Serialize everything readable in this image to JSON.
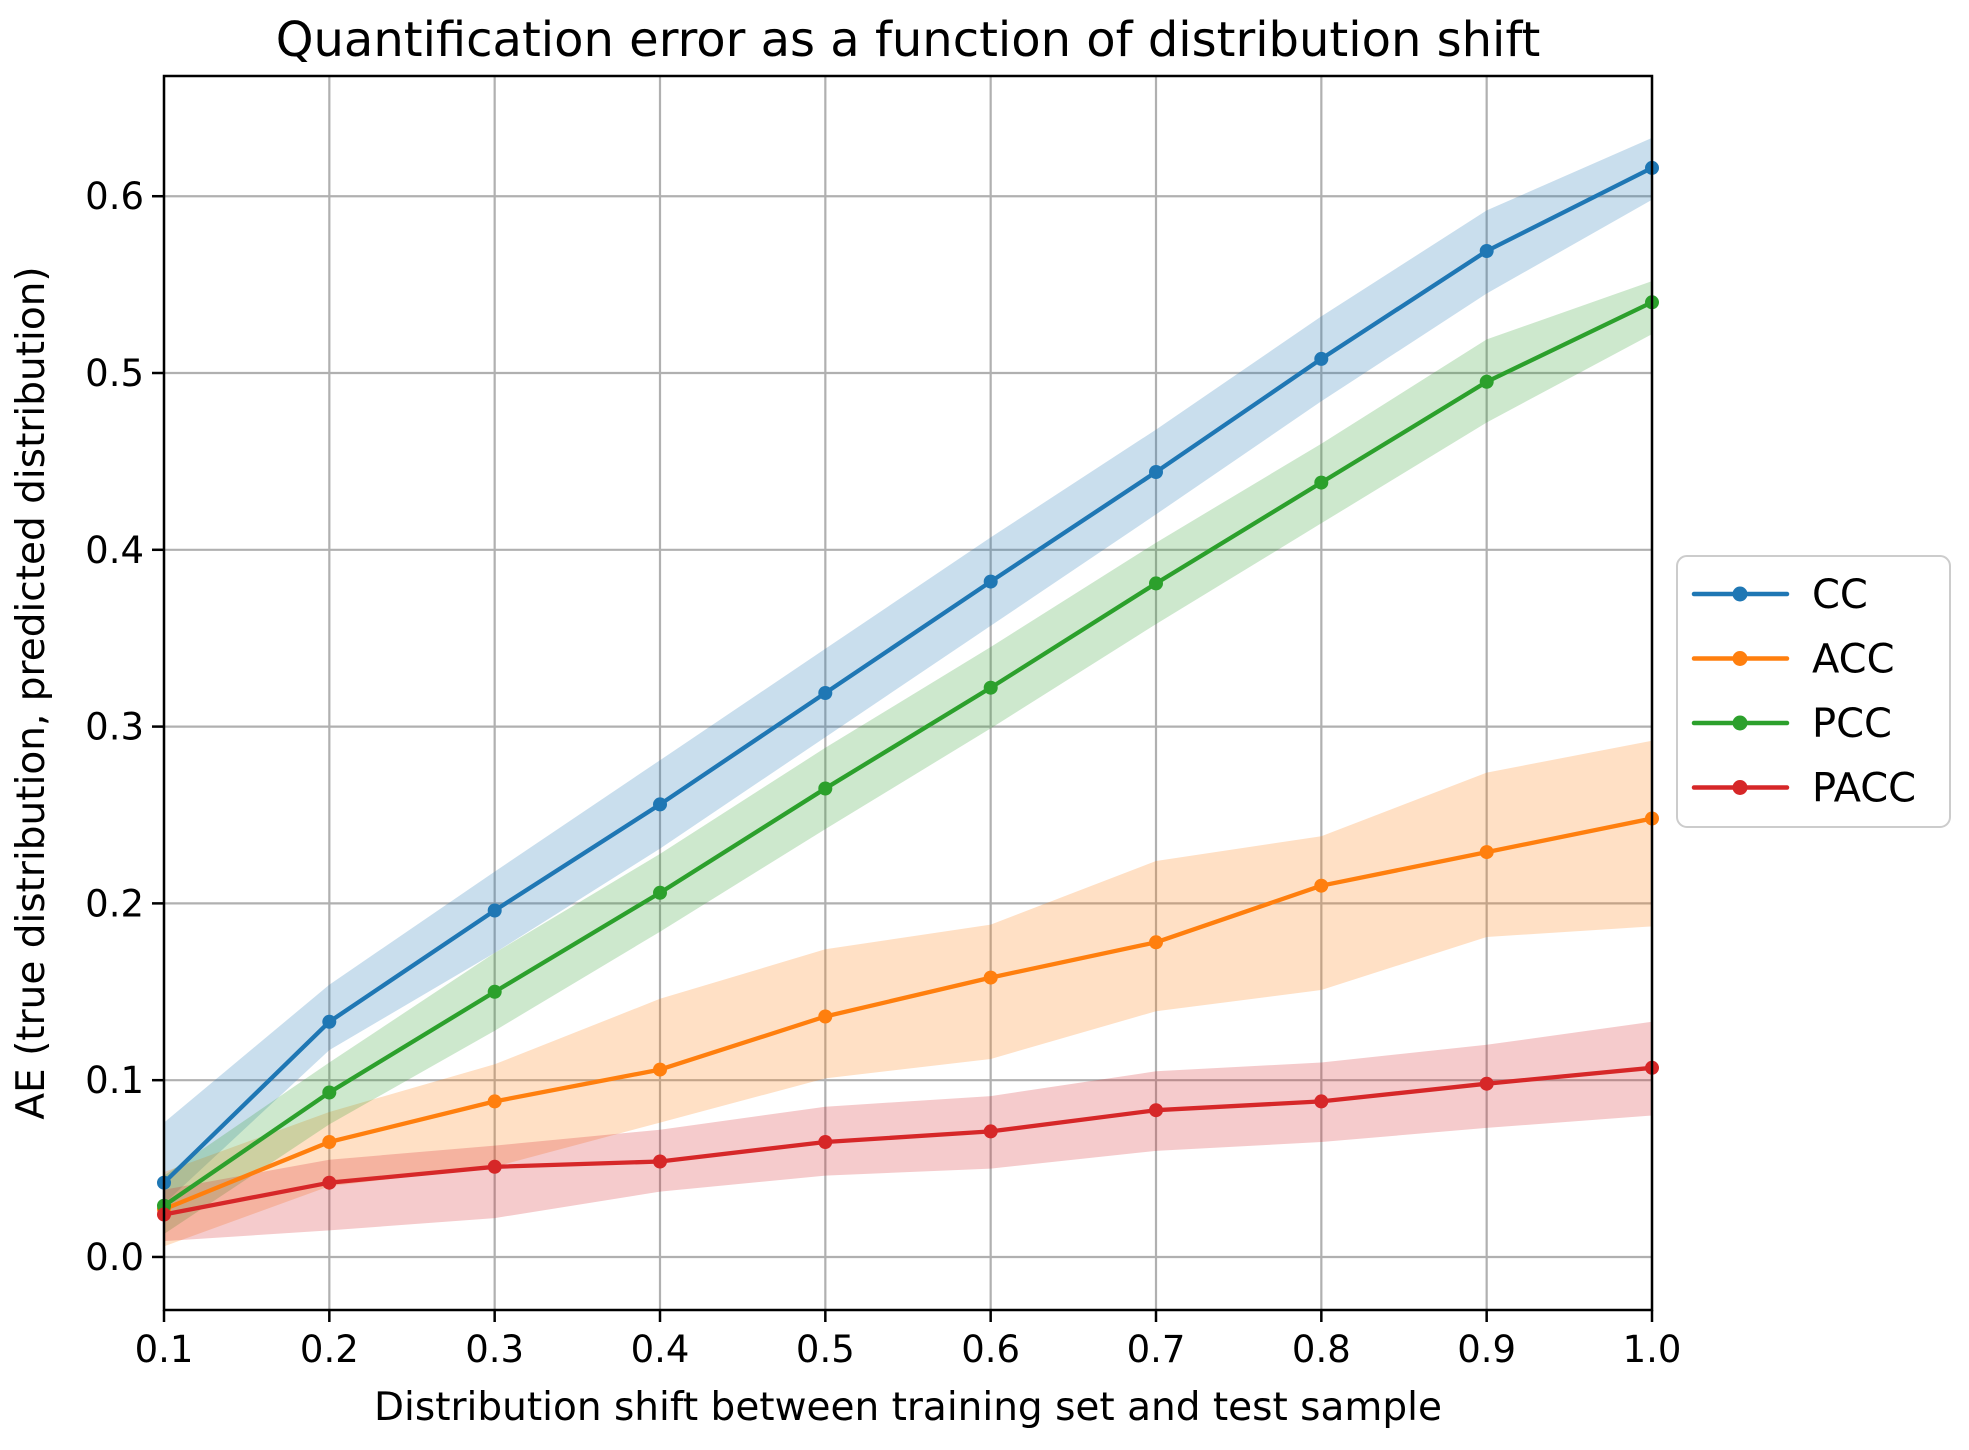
{
  "page": {
    "background": "#ffffff"
  },
  "chart_data": {
    "type": "line",
    "title": "Quantification error as a function of distribution shift",
    "xlabel": "Distribution shift between training set and test sample",
    "ylabel": "AE (true distribution, predicted distribution)",
    "x": [
      0.1,
      0.2,
      0.3,
      0.4,
      0.5,
      0.6,
      0.7,
      0.8,
      0.9,
      1.0
    ],
    "x_tick_labels": [
      "0.1",
      "0.2",
      "0.3",
      "0.4",
      "0.5",
      "0.6",
      "0.7",
      "0.8",
      "0.9",
      "1.0"
    ],
    "y_ticks": [
      0.0,
      0.1,
      0.2,
      0.3,
      0.4,
      0.5,
      0.6
    ],
    "y_tick_labels": [
      "0.0",
      "0.1",
      "0.2",
      "0.3",
      "0.4",
      "0.5",
      "0.6"
    ],
    "xlim": [
      0.1,
      1.0
    ],
    "ylim": [
      -0.03,
      0.668
    ],
    "grid": true,
    "grid_color": "#b0b0b0",
    "band_alpha": 0.24,
    "legend": {
      "position": "right-outside",
      "entries": [
        "CC",
        "ACC",
        "PCC",
        "PACC"
      ]
    },
    "series": [
      {
        "name": "CC",
        "color": "#1f77b4",
        "values": [
          0.042,
          0.133,
          0.196,
          0.256,
          0.319,
          0.382,
          0.444,
          0.508,
          0.569,
          0.616
        ],
        "band_lower": [
          0.03,
          0.117,
          0.172,
          0.231,
          0.294,
          0.357,
          0.42,
          0.484,
          0.545,
          0.598
        ],
        "band_upper": [
          0.076,
          0.154,
          0.218,
          0.281,
          0.344,
          0.407,
          0.468,
          0.532,
          0.592,
          0.633
        ]
      },
      {
        "name": "ACC",
        "color": "#ff7f0e",
        "values": [
          0.027,
          0.065,
          0.088,
          0.106,
          0.136,
          0.158,
          0.178,
          0.21,
          0.229,
          0.248
        ],
        "band_lower": [
          0.006,
          0.04,
          0.051,
          0.076,
          0.101,
          0.112,
          0.139,
          0.151,
          0.181,
          0.187
        ],
        "band_upper": [
          0.048,
          0.082,
          0.109,
          0.146,
          0.174,
          0.188,
          0.224,
          0.238,
          0.274,
          0.292
        ]
      },
      {
        "name": "PCC",
        "color": "#2ca02c",
        "values": [
          0.029,
          0.093,
          0.15,
          0.206,
          0.265,
          0.322,
          0.381,
          0.438,
          0.495,
          0.54
        ],
        "band_lower": [
          0.013,
          0.075,
          0.128,
          0.184,
          0.242,
          0.299,
          0.358,
          0.415,
          0.472,
          0.522
        ],
        "band_upper": [
          0.046,
          0.11,
          0.172,
          0.228,
          0.288,
          0.345,
          0.404,
          0.46,
          0.519,
          0.552
        ]
      },
      {
        "name": "PACC",
        "color": "#d62728",
        "values": [
          0.024,
          0.042,
          0.051,
          0.054,
          0.065,
          0.071,
          0.083,
          0.088,
          0.098,
          0.107
        ],
        "band_lower": [
          0.009,
          0.015,
          0.022,
          0.037,
          0.046,
          0.05,
          0.06,
          0.065,
          0.073,
          0.08
        ],
        "band_upper": [
          0.038,
          0.055,
          0.063,
          0.072,
          0.085,
          0.091,
          0.105,
          0.11,
          0.12,
          0.133
        ]
      }
    ]
  }
}
